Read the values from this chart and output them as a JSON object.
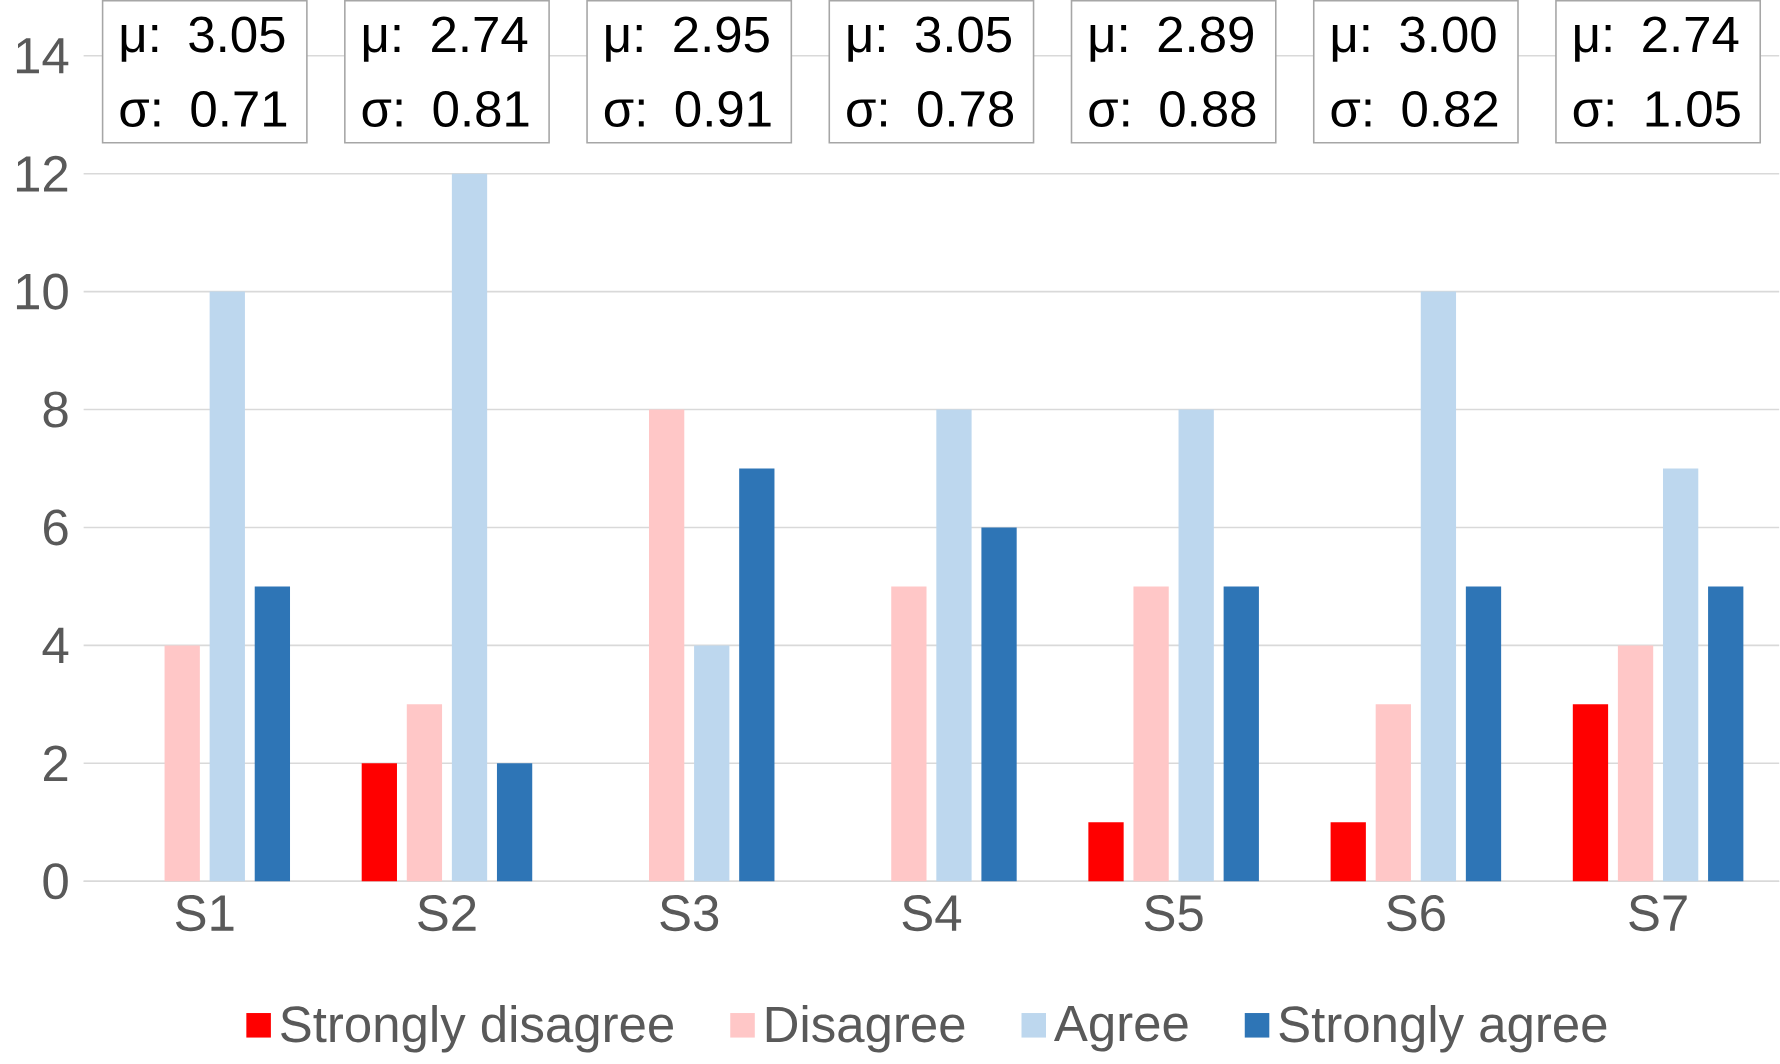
{
  "chart_data": {
    "type": "bar",
    "categories": [
      "S1",
      "S2",
      "S3",
      "S4",
      "S5",
      "S6",
      "S7"
    ],
    "series": [
      {
        "name": "Strongly disagree",
        "color": "#ff0000",
        "values": [
          0,
          2,
          0,
          0,
          1,
          1,
          3
        ]
      },
      {
        "name": "Disagree",
        "color": "#ffc7c7",
        "values": [
          4,
          3,
          8,
          5,
          5,
          3,
          4
        ]
      },
      {
        "name": "Agree",
        "color": "#bdd7ee",
        "values": [
          10,
          12,
          4,
          8,
          8,
          10,
          7
        ]
      },
      {
        "name": "Strongly agree",
        "color": "#2e75b6",
        "values": [
          5,
          2,
          7,
          6,
          5,
          5,
          5
        ]
      }
    ],
    "ylim": [
      0,
      14
    ],
    "yticks": [
      0,
      2,
      4,
      6,
      8,
      10,
      12,
      14
    ],
    "grid": "y",
    "legend": "bottom",
    "annotations": [
      "μ: 3.05 σ: 0.71",
      "μ: 2.74 σ: 0.81",
      "μ: 2.95 σ: 0.91",
      "μ: 3.05 σ: 0.78",
      "μ: 2.89 σ: 0.88",
      "μ: 3.00 σ: 0.82",
      "μ: 2.74 σ: 1.05"
    ]
  }
}
